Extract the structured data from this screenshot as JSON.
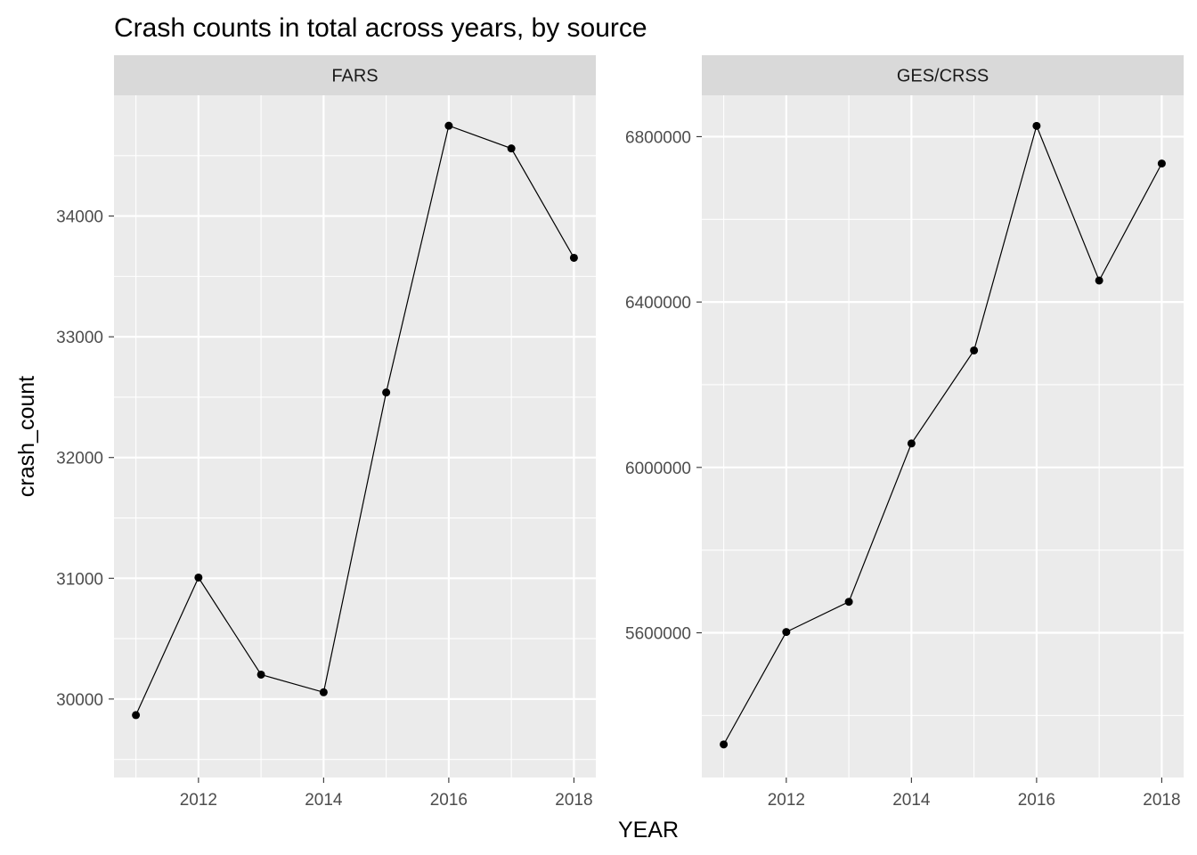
{
  "title": "Crash counts in total across years, by source",
  "xlabel": "YEAR",
  "ylabel": "crash_count",
  "colors": {
    "panel_background": "#ebebeb",
    "strip_background": "#d9d9d9",
    "grid": "#ffffff",
    "line": "#000000"
  },
  "chart_data": [
    {
      "type": "line",
      "facet": "FARS",
      "x": [
        2011,
        2012,
        2013,
        2014,
        2015,
        2016,
        2017,
        2018
      ],
      "y": [
        29867,
        31006,
        30202,
        30056,
        32539,
        34748,
        34560,
        33654
      ],
      "xlim": [
        2010.65,
        2018.35
      ],
      "ylim": [
        29350,
        35000
      ],
      "x_ticks": [
        2012,
        2014,
        2016,
        2018
      ],
      "x_tick_labels": [
        "2012",
        "2014",
        "2016",
        "2018"
      ],
      "y_ticks": [
        30000,
        31000,
        32000,
        33000,
        34000
      ],
      "y_tick_labels": [
        "30000",
        "31000",
        "32000",
        "33000",
        "34000"
      ],
      "grid": true,
      "markers": true
    },
    {
      "type": "line",
      "facet": "GES/CRSS",
      "x": [
        2011,
        2012,
        2013,
        2014,
        2015,
        2016,
        2017,
        2018
      ],
      "y": [
        5330000,
        5602000,
        5675000,
        6058000,
        6283000,
        6826000,
        6452000,
        6735000
      ],
      "xlim": [
        2010.65,
        2018.35
      ],
      "ylim": [
        5250000,
        6900000
      ],
      "x_ticks": [
        2012,
        2014,
        2016,
        2018
      ],
      "x_tick_labels": [
        "2012",
        "2014",
        "2016",
        "2018"
      ],
      "y_ticks": [
        5600000,
        6000000,
        6400000,
        6800000
      ],
      "y_tick_labels": [
        "5600000",
        "6000000",
        "6400000",
        "6800000"
      ],
      "grid": true,
      "markers": true
    }
  ]
}
